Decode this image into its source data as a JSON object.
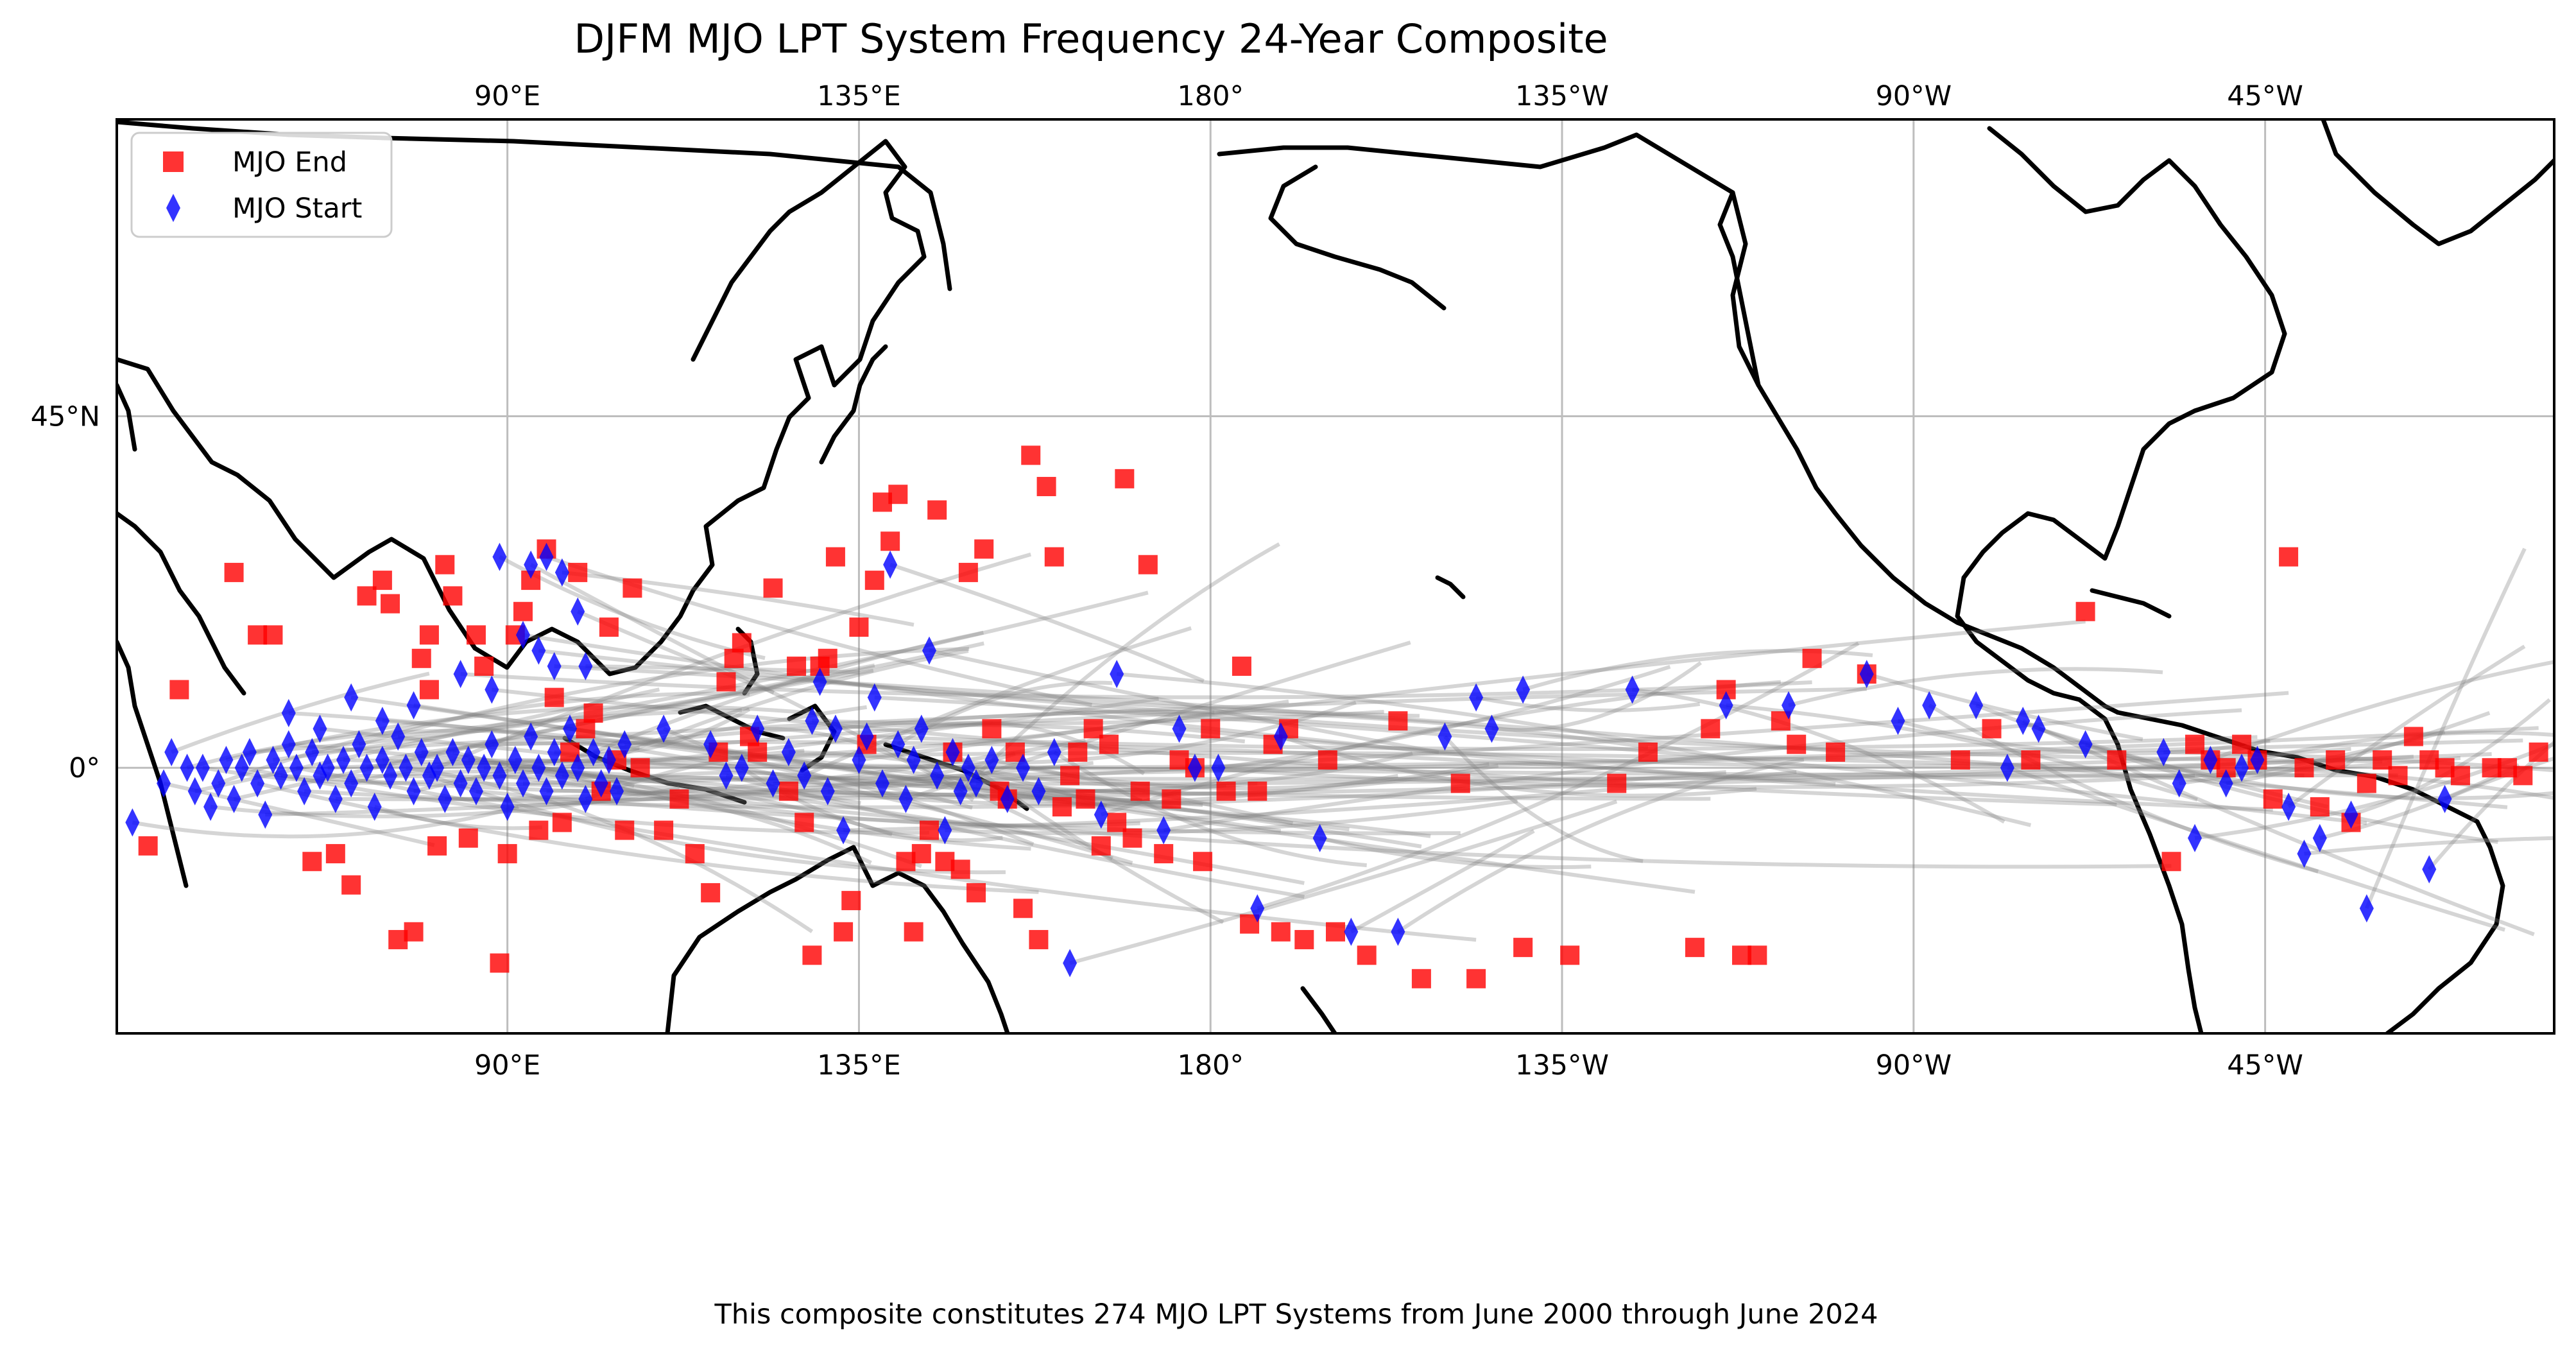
{
  "title": "DJFM MJO LPT System Frequency 24-Year Composite",
  "caption": "This composite constitutes 274 MJO LPT Systems from June 2000 through June 2024",
  "map": {
    "projection": "PlateCarree",
    "central_longitude": 180,
    "lon_range": [
      40,
      352
    ],
    "lat_range": [
      -34,
      83
    ],
    "lon_ticks": [
      {
        "lon": 90,
        "label": "90°E"
      },
      {
        "lon": 135,
        "label": "135°E"
      },
      {
        "lon": 180,
        "label": "180°"
      },
      {
        "lon": 225,
        "label": "135°W"
      },
      {
        "lon": 270,
        "label": "90°W"
      },
      {
        "lon": 315,
        "label": "45°W"
      }
    ],
    "lat_ticks": [
      {
        "lat": 45,
        "label": "45°N"
      },
      {
        "lat": 0,
        "label": "0°"
      }
    ],
    "grid": true,
    "coastline_color": "#000000",
    "track_color": "#808080"
  },
  "legend": {
    "placement": "top-left",
    "entries": [
      {
        "label": "MJO End",
        "marker": "square",
        "color": "#ff0000"
      },
      {
        "label": "MJO Start",
        "marker": "diamond",
        "color": "#0000ff"
      }
    ]
  },
  "chart_data": {
    "type": "scatter",
    "title": "DJFM MJO LPT System Frequency 24-Year Composite",
    "x_units": "degrees longitude east (0-360)",
    "y_units": "degrees latitude",
    "series": [
      {
        "name": "MJO Start",
        "marker": "diamond",
        "color": "#0000ff",
        "points": [
          [
            42,
            -7
          ],
          [
            46,
            -2
          ],
          [
            47,
            2
          ],
          [
            49,
            0
          ],
          [
            50,
            -3
          ],
          [
            51,
            0
          ],
          [
            52,
            -5
          ],
          [
            53,
            -2
          ],
          [
            54,
            1
          ],
          [
            55,
            -4
          ],
          [
            56,
            0
          ],
          [
            57,
            2
          ],
          [
            58,
            -2
          ],
          [
            59,
            -6
          ],
          [
            60,
            1
          ],
          [
            61,
            -1
          ],
          [
            62,
            3
          ],
          [
            63,
            0
          ],
          [
            64,
            -3
          ],
          [
            65,
            2
          ],
          [
            66,
            -1
          ],
          [
            67,
            0
          ],
          [
            68,
            -4
          ],
          [
            69,
            1
          ],
          [
            70,
            -2
          ],
          [
            71,
            3
          ],
          [
            72,
            0
          ],
          [
            73,
            -5
          ],
          [
            74,
            1
          ],
          [
            75,
            -1
          ],
          [
            76,
            4
          ],
          [
            77,
            0
          ],
          [
            78,
            -3
          ],
          [
            79,
            2
          ],
          [
            80,
            -1
          ],
          [
            81,
            0
          ],
          [
            82,
            -4
          ],
          [
            83,
            2
          ],
          [
            84,
            -2
          ],
          [
            85,
            1
          ],
          [
            86,
            -3
          ],
          [
            87,
            0
          ],
          [
            88,
            3
          ],
          [
            89,
            -1
          ],
          [
            90,
            -5
          ],
          [
            91,
            1
          ],
          [
            92,
            -2
          ],
          [
            93,
            4
          ],
          [
            94,
            0
          ],
          [
            95,
            -3
          ],
          [
            96,
            2
          ],
          [
            97,
            -1
          ],
          [
            98,
            5
          ],
          [
            99,
            0
          ],
          [
            100,
            -4
          ],
          [
            101,
            2
          ],
          [
            102,
            -2
          ],
          [
            103,
            1
          ],
          [
            104,
            -3
          ],
          [
            105,
            3
          ],
          [
            62,
            7
          ],
          [
            66,
            5
          ],
          [
            70,
            9
          ],
          [
            74,
            6
          ],
          [
            78,
            8
          ],
          [
            84,
            12
          ],
          [
            88,
            10
          ],
          [
            92,
            17
          ],
          [
            94,
            15
          ],
          [
            96,
            13
          ],
          [
            89,
            27
          ],
          [
            93,
            26
          ],
          [
            95,
            27
          ],
          [
            97,
            25
          ],
          [
            99,
            20
          ],
          [
            100,
            13
          ],
          [
            110,
            5
          ],
          [
            116,
            3
          ],
          [
            118,
            -1
          ],
          [
            120,
            0
          ],
          [
            122,
            5
          ],
          [
            124,
            -2
          ],
          [
            126,
            2
          ],
          [
            128,
            -1
          ],
          [
            129,
            6
          ],
          [
            130,
            11
          ],
          [
            131,
            -3
          ],
          [
            132,
            5
          ],
          [
            133,
            -8
          ],
          [
            135,
            1
          ],
          [
            136,
            4
          ],
          [
            137,
            9
          ],
          [
            138,
            -2
          ],
          [
            139,
            26
          ],
          [
            140,
            3
          ],
          [
            141,
            -4
          ],
          [
            142,
            1
          ],
          [
            143,
            5
          ],
          [
            144,
            15
          ],
          [
            145,
            -1
          ],
          [
            146,
            -8
          ],
          [
            147,
            2
          ],
          [
            148,
            -3
          ],
          [
            149,
            0
          ],
          [
            150,
            -2
          ],
          [
            152,
            1
          ],
          [
            154,
            -4
          ],
          [
            156,
            0
          ],
          [
            158,
            -3
          ],
          [
            160,
            2
          ],
          [
            162,
            -25
          ],
          [
            166,
            -6
          ],
          [
            168,
            12
          ],
          [
            174,
            -8
          ],
          [
            176,
            5
          ],
          [
            178,
            0
          ],
          [
            181,
            0
          ],
          [
            186,
            -18
          ],
          [
            189,
            4
          ],
          [
            194,
            -9
          ],
          [
            198,
            -21
          ],
          [
            204,
            -21
          ],
          [
            210,
            4
          ],
          [
            214,
            9
          ],
          [
            216,
            5
          ],
          [
            220,
            10
          ],
          [
            234,
            10
          ],
          [
            246,
            8
          ],
          [
            254,
            8
          ],
          [
            264,
            12
          ],
          [
            268,
            6
          ],
          [
            272,
            8
          ],
          [
            278,
            8
          ],
          [
            282,
            0
          ],
          [
            284,
            6
          ],
          [
            286,
            5
          ],
          [
            292,
            3
          ],
          [
            302,
            2
          ],
          [
            304,
            -2
          ],
          [
            306,
            -9
          ],
          [
            308,
            1
          ],
          [
            310,
            -2
          ],
          [
            312,
            0
          ],
          [
            314,
            1
          ],
          [
            318,
            -5
          ],
          [
            320,
            -11
          ],
          [
            322,
            -9
          ],
          [
            326,
            -6
          ],
          [
            328,
            -18
          ],
          [
            336,
            -13
          ],
          [
            338,
            -4
          ]
        ]
      },
      {
        "name": "MJO End",
        "marker": "square",
        "color": "#ff0000",
        "points": [
          [
            44,
            -10
          ],
          [
            48,
            10
          ],
          [
            55,
            25
          ],
          [
            58,
            17
          ],
          [
            60,
            17
          ],
          [
            65,
            -12
          ],
          [
            68,
            -11
          ],
          [
            70,
            -15
          ],
          [
            72,
            22
          ],
          [
            74,
            24
          ],
          [
            75,
            21
          ],
          [
            76,
            -22
          ],
          [
            78,
            -21
          ],
          [
            79,
            14
          ],
          [
            80,
            10
          ],
          [
            80,
            17
          ],
          [
            81,
            -10
          ],
          [
            82,
            26
          ],
          [
            83,
            22
          ],
          [
            85,
            -9
          ],
          [
            86,
            17
          ],
          [
            87,
            13
          ],
          [
            89,
            -25
          ],
          [
            90,
            -11
          ],
          [
            91,
            17
          ],
          [
            92,
            20
          ],
          [
            93,
            24
          ],
          [
            94,
            -8
          ],
          [
            95,
            28
          ],
          [
            96,
            9
          ],
          [
            97,
            -7
          ],
          [
            98,
            2
          ],
          [
            99,
            25
          ],
          [
            100,
            5
          ],
          [
            101,
            7
          ],
          [
            102,
            -3
          ],
          [
            103,
            18
          ],
          [
            104,
            1
          ],
          [
            105,
            -8
          ],
          [
            106,
            23
          ],
          [
            107,
            0
          ],
          [
            110,
            -8
          ],
          [
            112,
            -4
          ],
          [
            114,
            -11
          ],
          [
            116,
            -16
          ],
          [
            117,
            2
          ],
          [
            118,
            11
          ],
          [
            119,
            14
          ],
          [
            120,
            16
          ],
          [
            121,
            4
          ],
          [
            122,
            2
          ],
          [
            124,
            23
          ],
          [
            126,
            -3
          ],
          [
            127,
            13
          ],
          [
            128,
            -7
          ],
          [
            129,
            -24
          ],
          [
            130,
            13
          ],
          [
            131,
            14
          ],
          [
            132,
            27
          ],
          [
            133,
            -21
          ],
          [
            134,
            -17
          ],
          [
            135,
            18
          ],
          [
            136,
            3
          ],
          [
            137,
            24
          ],
          [
            138,
            34
          ],
          [
            139,
            29
          ],
          [
            140,
            35
          ],
          [
            141,
            -12
          ],
          [
            142,
            -21
          ],
          [
            143,
            -11
          ],
          [
            144,
            -8
          ],
          [
            145,
            33
          ],
          [
            146,
            -12
          ],
          [
            147,
            2
          ],
          [
            148,
            -13
          ],
          [
            149,
            25
          ],
          [
            150,
            -16
          ],
          [
            151,
            28
          ],
          [
            152,
            5
          ],
          [
            153,
            -3
          ],
          [
            154,
            -4
          ],
          [
            155,
            2
          ],
          [
            156,
            -18
          ],
          [
            157,
            40
          ],
          [
            158,
            -22
          ],
          [
            159,
            36
          ],
          [
            160,
            27
          ],
          [
            161,
            -5
          ],
          [
            162,
            -1
          ],
          [
            163,
            2
          ],
          [
            164,
            -4
          ],
          [
            165,
            5
          ],
          [
            166,
            -10
          ],
          [
            167,
            3
          ],
          [
            168,
            -7
          ],
          [
            169,
            37
          ],
          [
            170,
            -9
          ],
          [
            171,
            -3
          ],
          [
            172,
            26
          ],
          [
            174,
            -11
          ],
          [
            175,
            -4
          ],
          [
            176,
            1
          ],
          [
            178,
            0
          ],
          [
            179,
            -12
          ],
          [
            180,
            5
          ],
          [
            182,
            -3
          ],
          [
            184,
            13
          ],
          [
            185,
            -20
          ],
          [
            186,
            -3
          ],
          [
            188,
            3
          ],
          [
            189,
            -21
          ],
          [
            190,
            5
          ],
          [
            192,
            -22
          ],
          [
            195,
            1
          ],
          [
            196,
            -21
          ],
          [
            200,
            -24
          ],
          [
            204,
            6
          ],
          [
            207,
            -27
          ],
          [
            212,
            -2
          ],
          [
            214,
            -27
          ],
          [
            220,
            -23
          ],
          [
            226,
            -24
          ],
          [
            232,
            -2
          ],
          [
            236,
            2
          ],
          [
            242,
            -23
          ],
          [
            244,
            5
          ],
          [
            246,
            10
          ],
          [
            248,
            -24
          ],
          [
            250,
            -24
          ],
          [
            253,
            6
          ],
          [
            255,
            3
          ],
          [
            257,
            14
          ],
          [
            260,
            2
          ],
          [
            264,
            12
          ],
          [
            276,
            1
          ],
          [
            280,
            5
          ],
          [
            285,
            1
          ],
          [
            292,
            20
          ],
          [
            296,
            1
          ],
          [
            303,
            -12
          ],
          [
            306,
            3
          ],
          [
            308,
            1
          ],
          [
            310,
            0
          ],
          [
            312,
            3
          ],
          [
            314,
            1
          ],
          [
            316,
            -4
          ],
          [
            318,
            27
          ],
          [
            320,
            0
          ],
          [
            322,
            -5
          ],
          [
            324,
            1
          ],
          [
            326,
            -7
          ],
          [
            328,
            -2
          ],
          [
            330,
            1
          ],
          [
            332,
            -1
          ],
          [
            334,
            4
          ],
          [
            336,
            1
          ],
          [
            338,
            0
          ],
          [
            340,
            -1
          ],
          [
            344,
            0
          ],
          [
            346,
            0
          ],
          [
            348,
            -1
          ],
          [
            350,
            2
          ]
        ]
      }
    ]
  }
}
